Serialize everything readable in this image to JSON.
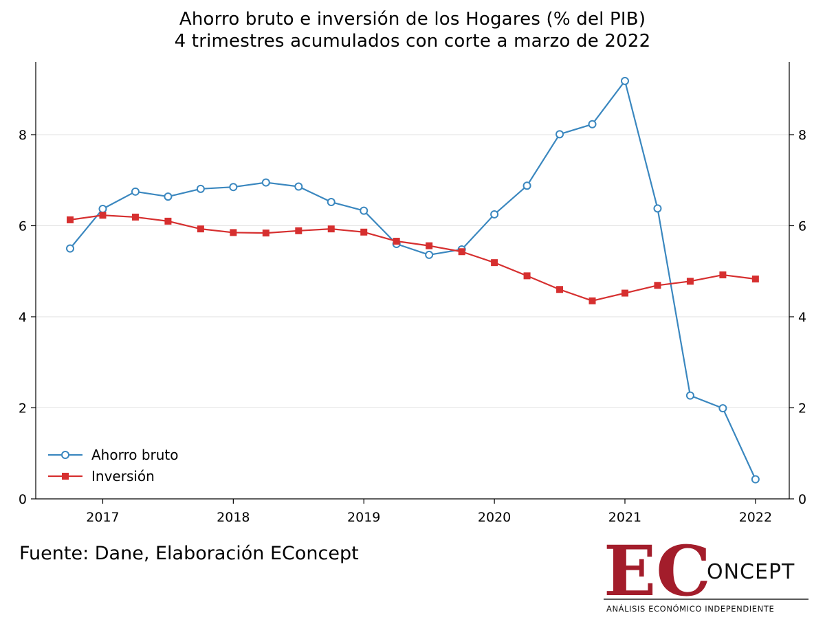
{
  "title": "Ahorro bruto e inversión de los Hogares (% del PIB)",
  "subtitle": "4 trimestres acumulados con corte a marzo de 2022",
  "source": "Fuente: Dane, Elaboración EConcept",
  "logo": {
    "letters": "EC",
    "word": "ONCEPT",
    "tagline": "ANÁLISIS ECONÓMICO INDEPENDIENTE"
  },
  "colors": {
    "ahorro": "#3a87bf",
    "inversion": "#d62f2f",
    "logo_red": "#a31d2b",
    "grid": "#e2e2e2"
  },
  "chart_data": {
    "type": "line",
    "title": "Ahorro bruto e inversión de los Hogares (% del PIB)",
    "subtitle": "4 trimestres acumulados con corte a marzo de 2022",
    "xlabel": "",
    "ylabel": "",
    "x": [
      "2016Q4",
      "2017Q1",
      "2017Q2",
      "2017Q3",
      "2017Q4",
      "2018Q1",
      "2018Q2",
      "2018Q3",
      "2018Q4",
      "2019Q1",
      "2019Q2",
      "2019Q3",
      "2019Q4",
      "2020Q1",
      "2020Q2",
      "2020Q3",
      "2020Q4",
      "2021Q1",
      "2021Q2",
      "2021Q3",
      "2021Q4",
      "2022Q1"
    ],
    "x_ticks": [
      "2017",
      "2018",
      "2019",
      "2020",
      "2021",
      "2022"
    ],
    "ylim": [
      0,
      9.6
    ],
    "y_ticks": [
      0,
      2,
      4,
      6,
      8
    ],
    "grid": true,
    "secondary_y_axis": true,
    "legend_position": "bottom-left",
    "series": [
      {
        "name": "Ahorro bruto",
        "marker": "circle-open",
        "values": [
          5.5,
          6.37,
          6.75,
          6.64,
          6.81,
          6.85,
          6.95,
          6.86,
          6.52,
          6.33,
          5.6,
          5.36,
          5.48,
          6.25,
          6.88,
          8.01,
          8.23,
          9.18,
          6.38,
          2.27,
          1.99,
          0.43
        ]
      },
      {
        "name": "Inversión",
        "marker": "square",
        "values": [
          6.13,
          6.23,
          6.19,
          6.1,
          5.93,
          5.85,
          5.84,
          5.89,
          5.93,
          5.86,
          5.66,
          5.56,
          5.43,
          5.19,
          4.9,
          4.6,
          4.35,
          4.52,
          4.69,
          4.78,
          4.92,
          4.83
        ]
      }
    ]
  }
}
